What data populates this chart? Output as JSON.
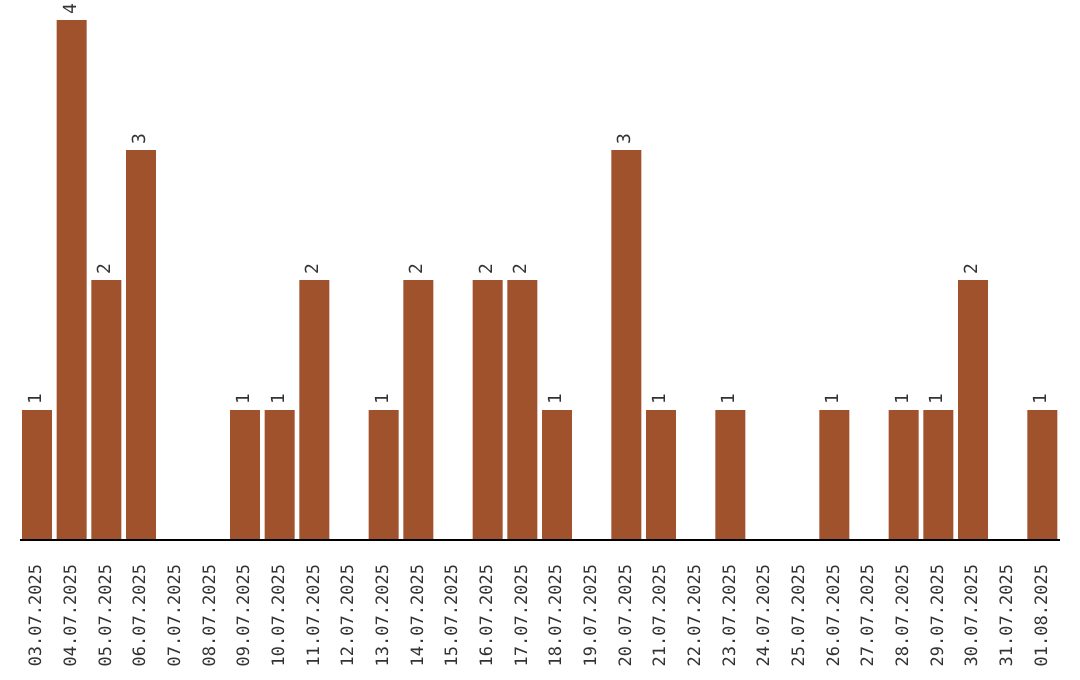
{
  "chart_data": {
    "type": "bar",
    "categories": [
      "03.07.2025",
      "04.07.2025",
      "05.07.2025",
      "06.07.2025",
      "07.07.2025",
      "08.07.2025",
      "09.07.2025",
      "10.07.2025",
      "11.07.2025",
      "12.07.2025",
      "13.07.2025",
      "14.07.2025",
      "15.07.2025",
      "16.07.2025",
      "17.07.2025",
      "18.07.2025",
      "19.07.2025",
      "20.07.2025",
      "21.07.2025",
      "22.07.2025",
      "23.07.2025",
      "24.07.2025",
      "25.07.2025",
      "26.07.2025",
      "27.07.2025",
      "28.07.2025",
      "29.07.2025",
      "30.07.2025",
      "31.07.2025",
      "01.08.2025"
    ],
    "values": [
      1,
      4,
      2,
      3,
      0,
      0,
      1,
      1,
      2,
      0,
      1,
      2,
      0,
      2,
      2,
      1,
      0,
      3,
      1,
      0,
      1,
      0,
      0,
      1,
      0,
      1,
      1,
      2,
      0,
      1
    ],
    "value_labels": [
      "1",
      "4",
      "2",
      "3",
      null,
      null,
      "1",
      "1",
      "2",
      null,
      "1",
      "2",
      null,
      "2",
      "2",
      "1",
      null,
      "3",
      "1",
      null,
      "1",
      null,
      null,
      "1",
      null,
      "1",
      "1",
      "2",
      null,
      "1"
    ],
    "color": "#a0522d",
    "grid": false,
    "legend": false
  }
}
